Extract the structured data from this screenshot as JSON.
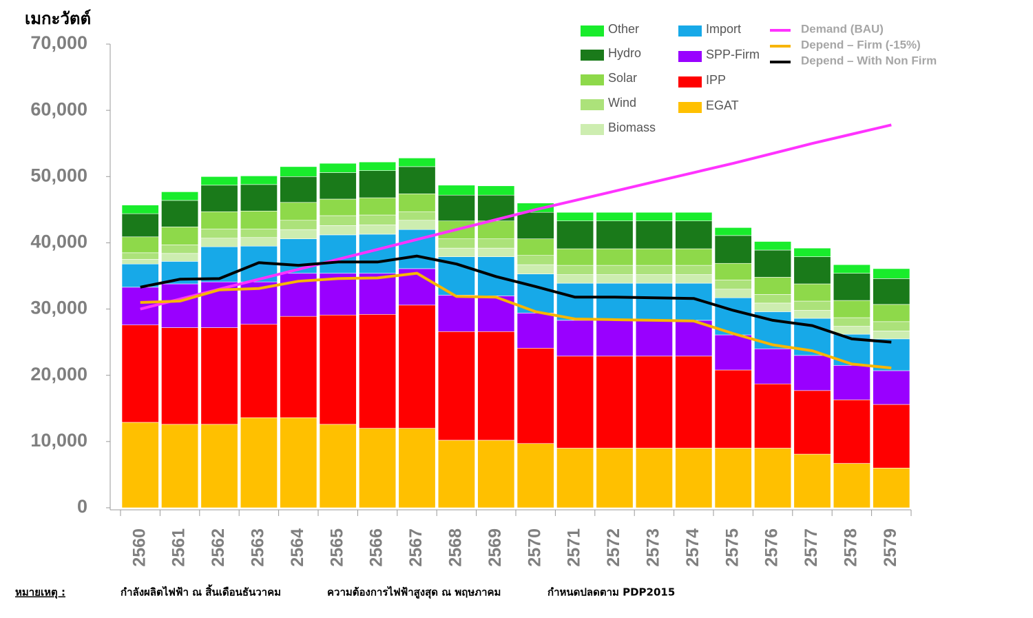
{
  "chart_data": {
    "type": "bar",
    "stacked": true,
    "y_label": "เมกะวัตต์",
    "categories": [
      "2560",
      "2561",
      "2562",
      "2563",
      "2564",
      "2565",
      "2566",
      "2567",
      "2568",
      "2569",
      "2570",
      "2571",
      "2572",
      "2573",
      "2574",
      "2575",
      "2576",
      "2577",
      "2578",
      "2579"
    ],
    "ylim": [
      0,
      70000
    ],
    "yticks": [
      0,
      {
        "value": 10000,
        "label": "10,000"
      },
      {
        "value": 20000,
        "label": "20,000"
      },
      {
        "value": 30000,
        "label": "30,000"
      },
      {
        "value": 40000,
        "label": "40,000"
      },
      {
        "value": 50000,
        "label": "50,000"
      },
      {
        "value": 60000,
        "label": "60,000"
      },
      {
        "value": 70000,
        "label": "70,000"
      }
    ],
    "grid": false,
    "series": [
      {
        "name": "EGAT",
        "color": "#ffc000",
        "values": [
          12900,
          12600,
          12600,
          13600,
          13600,
          12600,
          12000,
          12000,
          10200,
          10200,
          9700,
          9000,
          9000,
          9000,
          9000,
          9000,
          9000,
          8100,
          6700,
          6000
        ]
      },
      {
        "name": "IPP",
        "color": "#ff0000",
        "values": [
          14700,
          14600,
          14600,
          14100,
          15300,
          16500,
          17200,
          18600,
          16400,
          16400,
          14400,
          13900,
          13900,
          13900,
          13900,
          11800,
          9700,
          9600,
          9600,
          9600
        ]
      },
      {
        "name": "SPP-Firm",
        "color": "#9900ff",
        "values": [
          5700,
          6600,
          6900,
          6400,
          6500,
          6300,
          6200,
          5500,
          5500,
          5400,
          5300,
          5400,
          5400,
          5400,
          5400,
          5300,
          5300,
          5300,
          5200,
          5100
        ]
      },
      {
        "name": "Import",
        "color": "#17a9e8",
        "values": [
          3500,
          3400,
          5300,
          5400,
          5200,
          5800,
          5900,
          5900,
          5800,
          5900,
          5900,
          5600,
          5600,
          5600,
          5600,
          5600,
          5600,
          5600,
          4700,
          4800
        ]
      },
      {
        "name": "Biomass",
        "color": "#cdedb0",
        "values": [
          700,
          1200,
          1300,
          1300,
          1400,
          1400,
          1400,
          1400,
          1300,
          1300,
          1400,
          1300,
          1300,
          1300,
          1300,
          1300,
          1300,
          1200,
          1200,
          1200
        ]
      },
      {
        "name": "Wind",
        "color": "#ace27a",
        "values": [
          1000,
          1300,
          1400,
          1300,
          1400,
          1500,
          1500,
          1300,
          1400,
          1400,
          1400,
          1400,
          1400,
          1400,
          1400,
          1400,
          1300,
          1400,
          1300,
          1400
        ]
      },
      {
        "name": "Solar",
        "color": "#8ed94a",
        "values": [
          2400,
          2700,
          2600,
          2700,
          2700,
          2500,
          2600,
          2700,
          2700,
          2700,
          2500,
          2500,
          2500,
          2500,
          2500,
          2500,
          2600,
          2600,
          2600,
          2600
        ]
      },
      {
        "name": "Hydro",
        "color": "#1a7a1a",
        "values": [
          3500,
          4000,
          4000,
          4000,
          3900,
          4000,
          4100,
          4100,
          3900,
          3900,
          4000,
          4200,
          4200,
          4200,
          4200,
          4200,
          4100,
          4100,
          4100,
          3900
        ]
      },
      {
        "name": "Other",
        "color": "#19ec2c",
        "values": [
          1300,
          1300,
          1300,
          1300,
          1500,
          1400,
          1300,
          1300,
          1500,
          1400,
          1400,
          1300,
          1300,
          1300,
          1300,
          1200,
          1300,
          1300,
          1300,
          1500
        ]
      },
      {
        "name": "Demand (BAU)",
        "type": "line",
        "color": "#ff33ff",
        "values": [
          30000,
          31500,
          33000,
          34500,
          36000,
          37500,
          39000,
          40500,
          42000,
          43500,
          45000,
          46400,
          47800,
          49200,
          50600,
          52000,
          53500,
          55000,
          56400,
          57800
        ]
      },
      {
        "name": "Depend – Firm (-15%)",
        "type": "line",
        "color": "#f7b500",
        "values": [
          31000,
          31200,
          32900,
          33100,
          34200,
          34600,
          34700,
          35400,
          31900,
          31800,
          29600,
          28500,
          28400,
          28300,
          28200,
          26300,
          24600,
          23700,
          21700,
          21100
        ]
      },
      {
        "name": "Depend – With Non Firm",
        "type": "line",
        "color": "#000000",
        "values": [
          33300,
          34500,
          34600,
          37000,
          36600,
          37100,
          37100,
          38000,
          36800,
          34900,
          33400,
          31800,
          31800,
          31700,
          31600,
          29800,
          28300,
          27500,
          25500,
          25000
        ]
      }
    ]
  },
  "footnote": {
    "label": "หมายเหตุ :",
    "items": [
      "กำลังผลิตไฟฟ้า ณ สิ้นเดือนธันวาคม",
      "ความต้องการไฟฟ้าสูงสุด ณ พฤษภาคม",
      "กำหนดปลดตาม PDP2015"
    ]
  }
}
